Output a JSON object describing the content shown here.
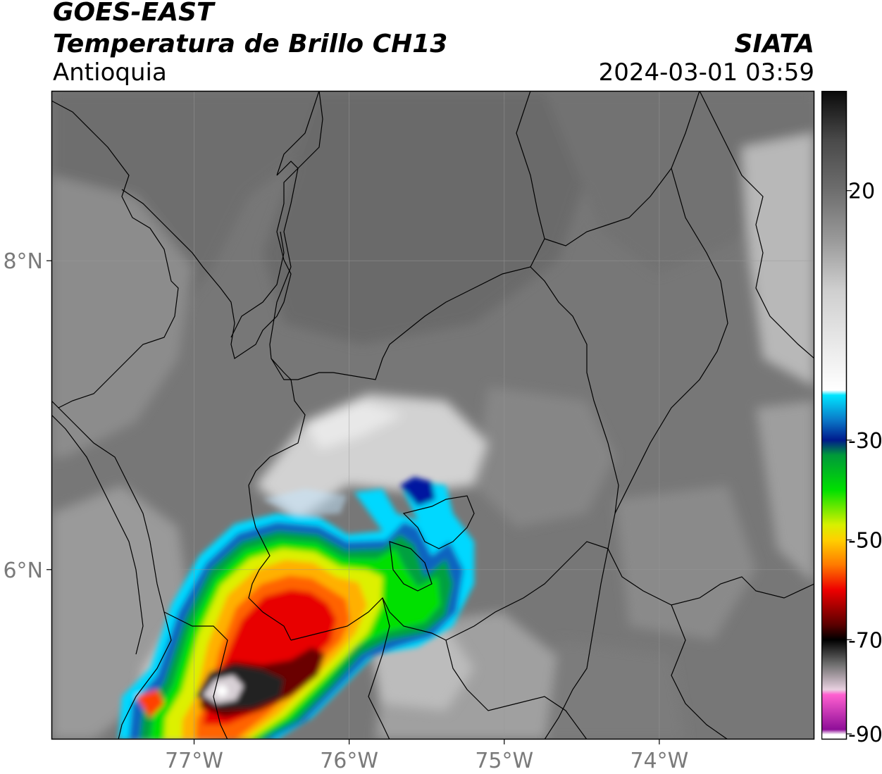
{
  "header": {
    "satellite": "GOES-EAST",
    "product": "Temperatura de Brillo CH13",
    "region": "Antioquia",
    "agency": "SIATA",
    "datetime": "2024-03-01 03:59"
  },
  "map": {
    "lon_range": [
      -77.92,
      -73.0
    ],
    "lat_range": [
      4.9,
      9.1
    ],
    "lon_ticks": [
      {
        "value": -77,
        "label": "77°W"
      },
      {
        "value": -76,
        "label": "76°W"
      },
      {
        "value": -75,
        "label": "75°W"
      },
      {
        "value": -74,
        "label": "74°W"
      }
    ],
    "lat_ticks": [
      {
        "value": 8,
        "label": "8°N"
      },
      {
        "value": 6,
        "label": "6°N"
      }
    ],
    "gridlines": true
  },
  "colorbar": {
    "range": [
      -90,
      40
    ],
    "ticks": [
      {
        "value": 20,
        "label": "20"
      },
      {
        "value": -30,
        "label": "-30"
      },
      {
        "value": -50,
        "label": "-50"
      },
      {
        "value": -70,
        "label": "-70"
      },
      {
        "value": -90,
        "label": "-90"
      }
    ],
    "stops": [
      {
        "value": 40,
        "color": "#0a0a0a"
      },
      {
        "value": 30,
        "color": "#4a4a4a"
      },
      {
        "value": 20,
        "color": "#6e6e6e"
      },
      {
        "value": 10,
        "color": "#9a9a9a"
      },
      {
        "value": 0,
        "color": "#cfcfcf"
      },
      {
        "value": -20,
        "color": "#ffffff"
      },
      {
        "value": -21,
        "color": "#00e5ff"
      },
      {
        "value": -26,
        "color": "#0a78c8"
      },
      {
        "value": -30,
        "color": "#001a8c"
      },
      {
        "value": -33,
        "color": "#00993a"
      },
      {
        "value": -40,
        "color": "#00e000"
      },
      {
        "value": -47,
        "color": "#d8f000"
      },
      {
        "value": -50,
        "color": "#ffd000"
      },
      {
        "value": -55,
        "color": "#ff7a00"
      },
      {
        "value": -60,
        "color": "#ee0000"
      },
      {
        "value": -67,
        "color": "#5a0000"
      },
      {
        "value": -70,
        "color": "#000000"
      },
      {
        "value": -75,
        "color": "#707070"
      },
      {
        "value": -80,
        "color": "#e8d0e0"
      },
      {
        "value": -81,
        "color": "#ff60d0"
      },
      {
        "value": -88,
        "color": "#8e0e98"
      },
      {
        "value": -89,
        "color": "#ffffff"
      },
      {
        "value": -90,
        "color": "#ffffff"
      }
    ]
  }
}
